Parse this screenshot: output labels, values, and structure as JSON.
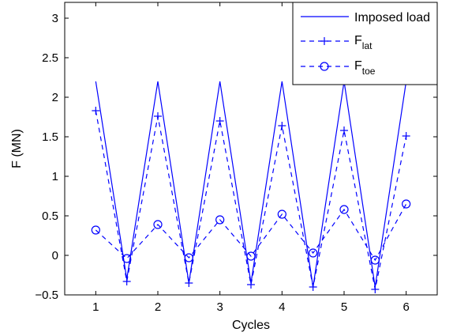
{
  "chart_data": {
    "type": "line",
    "xlabel": "Cycles",
    "ylabel": "F (MN)",
    "xlim": [
      0.5,
      6.5
    ],
    "ylim": [
      -0.5,
      3.2
    ],
    "xticks": [
      1,
      2,
      3,
      4,
      5,
      6
    ],
    "yticks": [
      -0.5,
      0,
      0.5,
      1,
      1.5,
      2,
      2.5,
      3
    ],
    "ytick_labels": [
      "−0.5",
      "0",
      "0.5",
      "1",
      "1.5",
      "2",
      "2.5",
      "3"
    ],
    "grid": false,
    "legend_position": "top-right",
    "series": [
      {
        "name": "Imposed load",
        "style": "solid",
        "marker": "none",
        "x": [
          1,
          1.5,
          2,
          2.5,
          3,
          3.5,
          4,
          4.5,
          5,
          5.5,
          6
        ],
        "y": [
          2.2,
          -0.3,
          2.2,
          -0.35,
          2.2,
          -0.35,
          2.2,
          -0.4,
          2.2,
          -0.4,
          2.2
        ]
      },
      {
        "name": "F",
        "name_subscript": "lat",
        "style": "dashed",
        "marker": "plus",
        "x": [
          1,
          1.5,
          2,
          2.5,
          3,
          3.5,
          4,
          4.5,
          5,
          5.5,
          6
        ],
        "y": [
          1.83,
          -0.33,
          1.76,
          -0.35,
          1.7,
          -0.37,
          1.64,
          -0.4,
          1.58,
          -0.43,
          1.51
        ]
      },
      {
        "name": "F",
        "name_subscript": "toe",
        "style": "dashed",
        "marker": "circle",
        "x": [
          1,
          1.5,
          2,
          2.5,
          3,
          3.5,
          4,
          4.5,
          5,
          5.5,
          6
        ],
        "y": [
          0.32,
          -0.04,
          0.39,
          -0.03,
          0.45,
          -0.01,
          0.52,
          0.03,
          0.58,
          -0.06,
          0.65
        ]
      }
    ]
  },
  "colors": {
    "series": "#0000ff",
    "axes": "#000000"
  }
}
